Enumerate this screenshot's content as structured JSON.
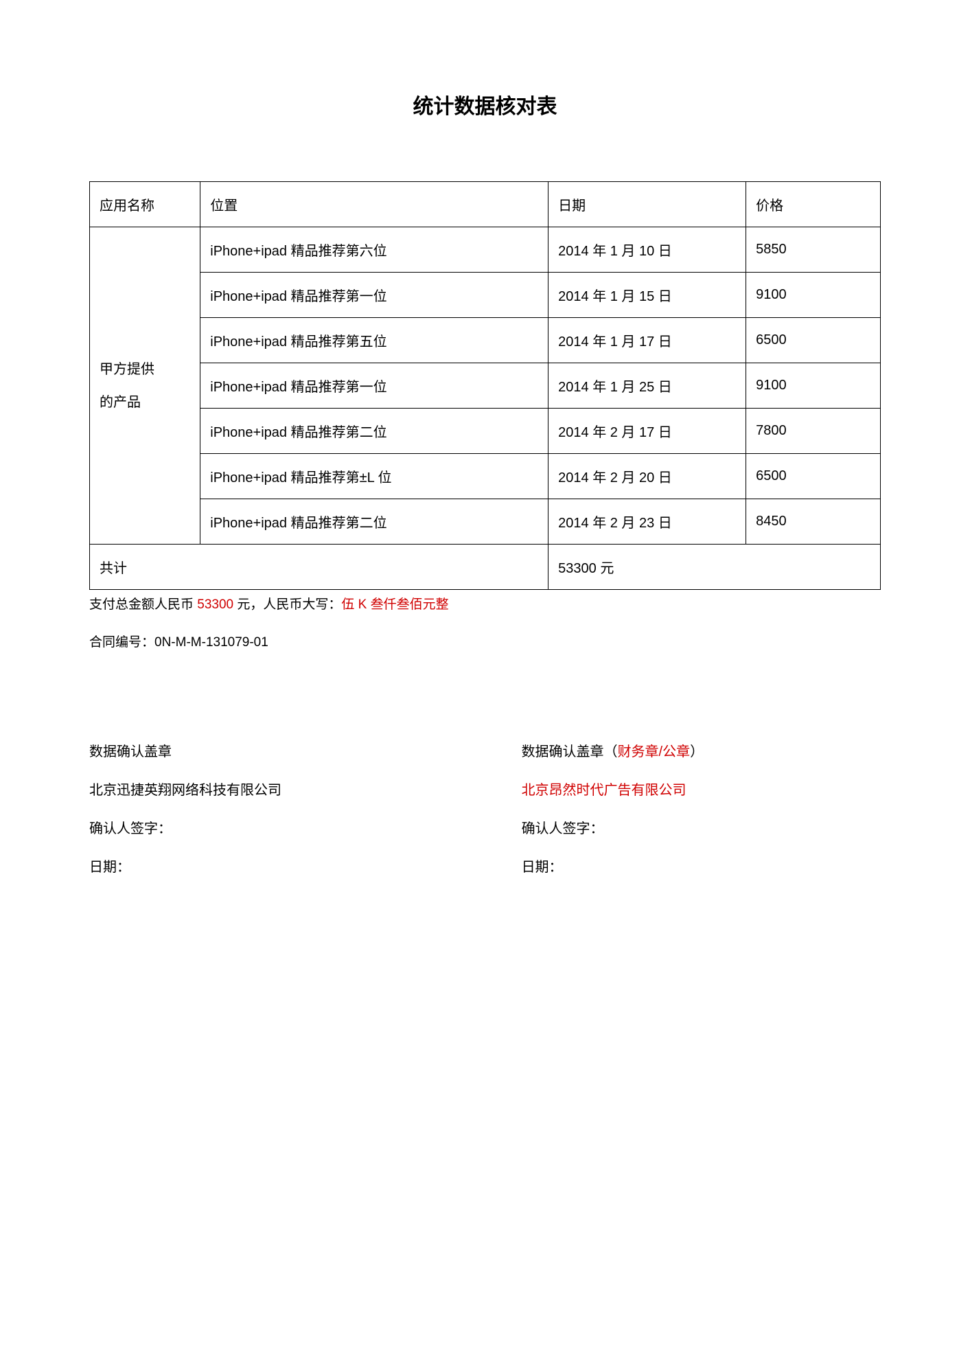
{
  "title": "统计数据核对表",
  "table": {
    "headers": {
      "app_name": "应用名称",
      "position": "位置",
      "date": "日期",
      "price": "价格"
    },
    "app_label_line1": "甲方提供",
    "app_label_line2": "的产品",
    "rows": [
      {
        "position": "iPhone+ipad 精品推荐第六位",
        "date": "2014 年 1 月 10 日",
        "price": "5850"
      },
      {
        "position": "iPhone+ipad 精品推荐第一位",
        "date": "2014 年 1 月 15 日",
        "price": "9100"
      },
      {
        "position": "iPhone+ipad 精品推荐第五位",
        "date": "2014 年 1 月 17 日",
        "price": "6500"
      },
      {
        "position": "iPhone+ipad 精品推荐第一位",
        "date": "2014 年 1 月 25 日",
        "price": "9100"
      },
      {
        "position": "iPhone+ipad 精品推荐第二位",
        "date": "2014 年 2 月 17 日",
        "price": "7800"
      },
      {
        "position": "iPhone+ipad 精品推荐第±L 位",
        "date": "2014 年 2 月 20 日",
        "price": "6500"
      },
      {
        "position": "iPhone+ipad 精品推荐第二位",
        "date": "2014 年 2 月 23 日",
        "price": "8450"
      }
    ],
    "total_label": "共计",
    "total_value": "53300 元"
  },
  "payment_line": {
    "prefix": "支付总金额人民币 ",
    "amount": "53300",
    "mid": " 元，人民币大写：",
    "cn_amount": "伍 K 叁仟叁佰元整"
  },
  "contract": {
    "label": "合同编号：",
    "number": "0N-M-M-131079-01"
  },
  "sign": {
    "left": {
      "stamp_label": "数据确认盖章",
      "company": "北京迅捷英翔网络科技有限公司",
      "signer_label": "确认人签字：",
      "date_label": "日期："
    },
    "right": {
      "stamp_label_prefix": "数据确认盖章（",
      "stamp_label_red": "财务章/公章",
      "stamp_label_suffix": "）",
      "company": "北京昂然时代广告有限公司",
      "signer_label": "确认人签字：",
      "date_label": "日期："
    }
  }
}
